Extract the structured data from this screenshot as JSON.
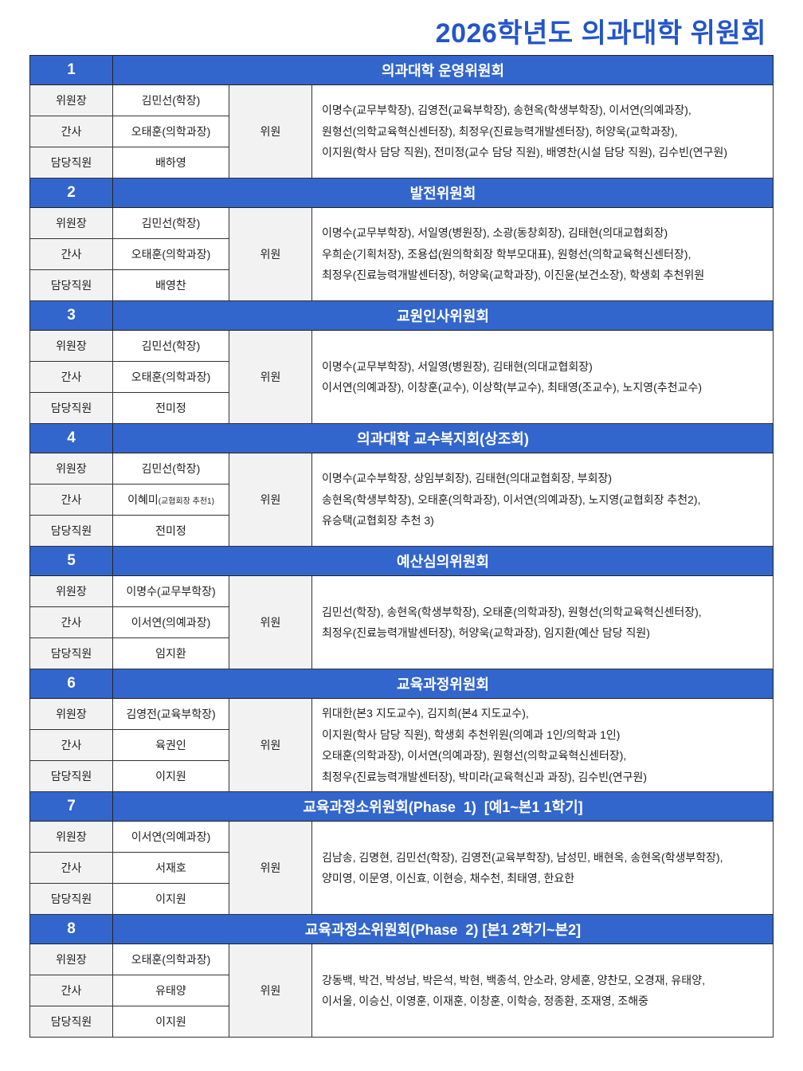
{
  "title": "2026학년도 의과대학 위원회",
  "labels": {
    "chair": "위원장",
    "secretary": "간사",
    "staff": "담당직원",
    "members": "위원"
  },
  "colors": {
    "header_bg": "#3366cc",
    "title": "#2455c8",
    "label_bg": "#f2f2f2"
  },
  "committees": [
    {
      "num": "1",
      "name": "의과대학 운영위원회",
      "chair": "김민선(학장)",
      "secretary": "오태훈(의학과장)",
      "secretary_note": "",
      "staff": "배하영",
      "members": [
        "이명수(교무부학장), 김영전(교육부학장), 송현옥(학생부학장), 이서연(의예과장),",
        "원형선(의학교육혁신센터장), 최정우(진료능력개발센터장), 허양욱(교학과장),",
        "이지원(학사 담당 직원), 전미정(교수 담당 직원), 배영찬(시설 담당 직원), 김수빈(연구원)"
      ]
    },
    {
      "num": "2",
      "name": "발전위원회",
      "chair": "김민선(학장)",
      "secretary": "오태훈(의학과장)",
      "secretary_note": "",
      "staff": "배영찬",
      "members": [
        "이명수(교무부학장), 서일영(병원장), 소광(동창회장), 김태현(의대교협회장)",
        "우희순(기획처장), 조용섭(원의학회장 학부모대표), 원형선(의학교육혁신센터장),",
        "최정우(진료능력개발센터장), 허양욱(교학과장), 이진윤(보건소장), 학생회 추천위원"
      ]
    },
    {
      "num": "3",
      "name": "교원인사위원회",
      "chair": "김민선(학장)",
      "secretary": "오태훈(의학과장)",
      "secretary_note": "",
      "staff": "전미정",
      "members": [
        "이명수(교무부학장), 서일영(병원장), 김태현(의대교협회장)",
        "이서연(의예과장), 이창훈(교수), 이상학(부교수), 최태영(조교수), 노지영(추천교수)"
      ]
    },
    {
      "num": "4",
      "name": "의과대학 교수복지회(상조회)",
      "chair": "김민선(학장)",
      "secretary": "이혜미",
      "secretary_note": "(교협회장 추천1)",
      "staff": "전미정",
      "members": [
        "이명수(교수부학장, 상임부회장), 김태현(의대교협회장, 부회장)",
        "송현옥(학생부학장), 오태훈(의학과장), 이서연(의예과장), 노지영(교협회장 추천2),",
        "유승택(교협회장 추천 3)"
      ]
    },
    {
      "num": "5",
      "name": "예산심의위원회",
      "chair": "이명수(교무부학장)",
      "secretary": "이서연(의예과장)",
      "secretary_note": "",
      "staff": "임지환",
      "members": [
        "김민선(학장), 송현옥(학생부학장), 오태훈(의학과장), 원형선(의학교육혁신센터장),",
        "최정우(진료능력개발센터장), 허양욱(교학과장), 임지환(예산 담당 직원)"
      ]
    },
    {
      "num": "6",
      "name": "교육과정위원회",
      "chair": "김영전(교육부학장)",
      "secretary": "육권인",
      "secretary_note": "",
      "staff": "이지원",
      "members": [
        "위대한(본3 지도교수), 김지희(본4 지도교수),",
        "이지원(학사 담당 직원), 학생회 추천위원(의예과 1인/의학과 1인)",
        "오태훈(의학과장), 이서연(의예과장), 원형선(의학교육혁신센터장),",
        "최정우(진료능력개발센터장), 박미라(교육혁신과 과장), 김수빈(연구원)"
      ]
    },
    {
      "num": "7",
      "name": "교육과정소위원회(Phase  1)  [예1~본1 1학기]",
      "chair": "이서연(의예과장)",
      "secretary": "서재호",
      "secretary_note": "",
      "staff": "이지원",
      "members": [
        "김남송, 김명현, 김민선(학장), 김영전(교육부학장), 남성민, 배현옥, 송현옥(학생부학장),",
        "양미영, 이문영, 이신효, 이현승, 채수천, 최태영, 한요한"
      ]
    },
    {
      "num": "8",
      "name": "교육과정소위원회(Phase  2) [본1 2학기~본2]",
      "chair": "오태훈(의학과장)",
      "secretary": "유태양",
      "secretary_note": "",
      "staff": "이지원",
      "members": [
        "강동백, 박건, 박성남, 박은석, 박현, 백종석, 안소라, 양세훈, 양찬모, 오경재, 유태양,",
        "이서울, 이승신, 이영훈, 이재훈, 이창훈, 이학승, 정종환, 조재영, 조해중"
      ]
    }
  ]
}
